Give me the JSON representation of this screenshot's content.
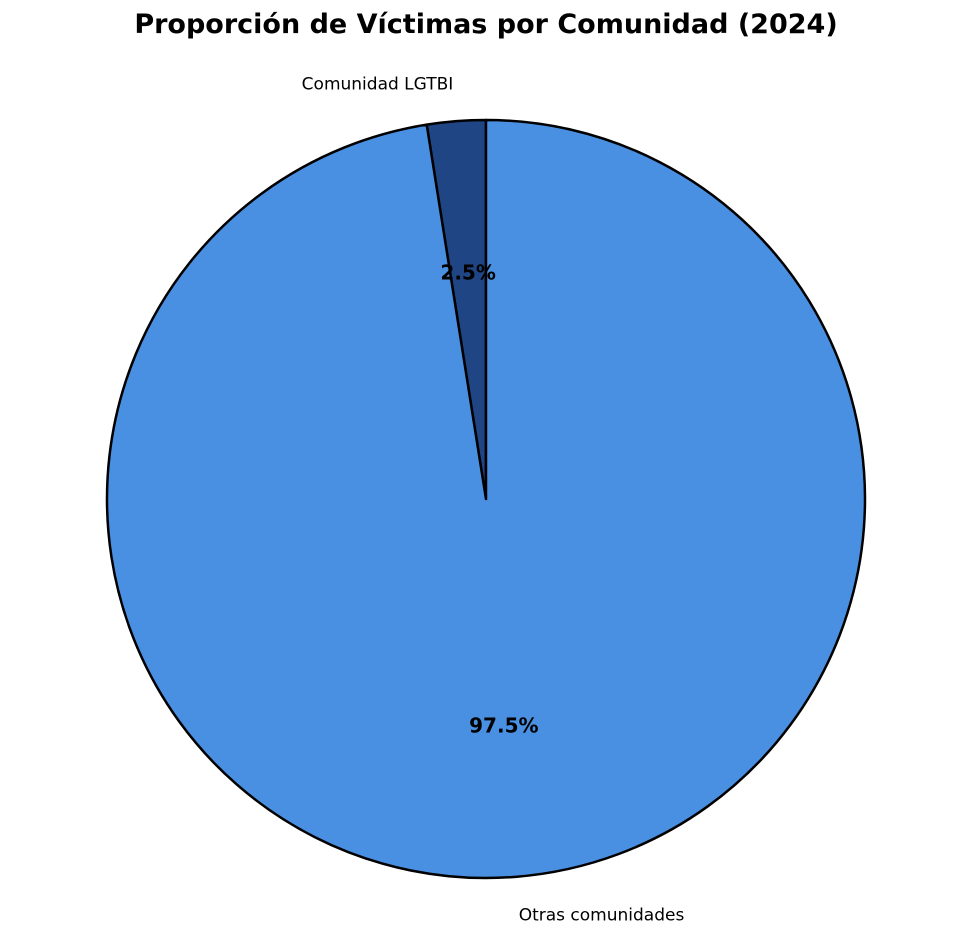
{
  "chart_data": {
    "type": "pie",
    "title": "Proporción de Víctimas por Comunidad (2024)",
    "slices": [
      {
        "label": "Comunidad LGTBI",
        "value": 2.5,
        "pct_label": "2.5%",
        "color": "#1f4584"
      },
      {
        "label": "Otras comunidades",
        "value": 97.5,
        "pct_label": "97.5%",
        "color": "#4a90e2"
      }
    ],
    "start_angle_deg": 90,
    "direction": "counterclockwise",
    "edge_color": "#000000"
  }
}
